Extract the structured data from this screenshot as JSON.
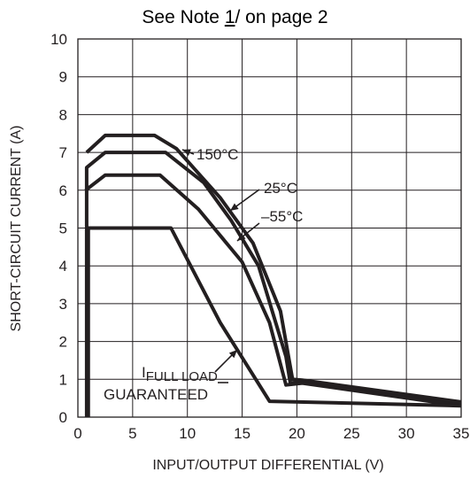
{
  "note": {
    "prefix": "See Note ",
    "number": "1",
    "suffix": "/ on page 2"
  },
  "chart_data": {
    "type": "line",
    "title": "See Note 1/ on page 2",
    "xlabel": "INPUT/OUTPUT DIFFERENTIAL (V)",
    "ylabel": "SHORT-CIRCUIT CURRENT (A)",
    "xlim": [
      0,
      35
    ],
    "ylim": [
      0,
      10
    ],
    "xticks": [
      0,
      5,
      10,
      15,
      20,
      25,
      30,
      35
    ],
    "yticks": [
      0,
      1,
      2,
      3,
      4,
      5,
      6,
      7,
      8,
      9,
      10
    ],
    "grid": true,
    "series": [
      {
        "name": "150°C",
        "x": [
          0.8,
          2.5,
          7.0,
          9.0,
          13.0,
          16.0,
          18.5,
          19.6,
          20.5,
          35
        ],
        "y": [
          7.0,
          7.45,
          7.45,
          7.1,
          5.8,
          4.6,
          2.8,
          1.0,
          0.98,
          0.4
        ]
      },
      {
        "name": "25°C",
        "x": [
          0.8,
          0.8,
          2.5,
          8.0,
          11.5,
          14.0,
          16.5,
          19.0,
          19.4,
          20.5,
          35
        ],
        "y": [
          0.0,
          6.6,
          7.0,
          7.0,
          6.2,
          5.2,
          4.0,
          1.6,
          0.9,
          0.93,
          0.35
        ]
      },
      {
        "name": "-55°C",
        "x": [
          0.7,
          2.5,
          7.5,
          11.0,
          15.0,
          17.5,
          19.0,
          20.5,
          35
        ],
        "y": [
          6.0,
          6.4,
          6.4,
          5.5,
          4.1,
          2.5,
          0.85,
          0.9,
          0.3
        ]
      },
      {
        "name": "IFULL LOAD GUARANTEED",
        "x": [
          0.8,
          8.5,
          13.0,
          17.5,
          35
        ],
        "y": [
          5.0,
          5.0,
          2.5,
          0.42,
          0.3
        ]
      }
    ],
    "annotations": [
      {
        "text": "150°C",
        "x": 13.0,
        "y": 7.05
      },
      {
        "text": "25°C",
        "x": 19.5,
        "y": 6.0
      },
      {
        "text": "–55°C",
        "x": 20.0,
        "y": 5.0
      },
      {
        "text": "IFULL LOAD",
        "x": 8.0,
        "y": 1.2
      },
      {
        "text": "GUARANTEED",
        "x": 8.0,
        "y": 0.55
      }
    ],
    "ifull": {
      "main": "I",
      "sub": "FULL LOAD",
      "line2": "GUARANTEED"
    },
    "labels": {
      "t150": "150°C",
      "t25": "25°C",
      "tm55": "–55°C"
    }
  }
}
